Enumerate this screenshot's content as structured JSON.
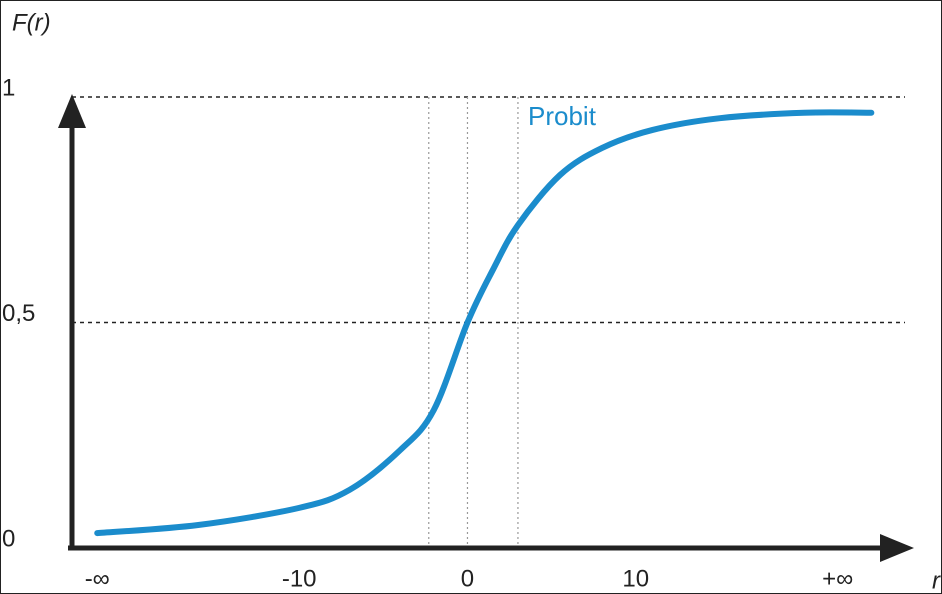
{
  "chart_data": {
    "type": "line",
    "y_label": "F(r)",
    "x_label": "r",
    "x": [
      -22,
      -16,
      -10,
      -7,
      -4,
      -2,
      0,
      1.5,
      3,
      5.5,
      8,
      11,
      15,
      20,
      24
    ],
    "series": [
      {
        "name": "Probit",
        "color": "#1b8ccc",
        "values": [
          0.033,
          0.051,
          0.089,
          0.129,
          0.217,
          0.306,
          0.5,
          0.616,
          0.716,
          0.827,
          0.887,
          0.927,
          0.953,
          0.965,
          0.965
        ]
      }
    ],
    "xlim": [
      -23.5,
      26
    ],
    "ylim": [
      0,
      1
    ],
    "xticks": [
      {
        "value": -22,
        "label": "-∞"
      },
      -10,
      0,
      10,
      {
        "value": 22,
        "label": "+∞"
      }
    ],
    "yticks": [
      0,
      {
        "value": 0.5,
        "label": "0,5"
      },
      1
    ],
    "vlines": [
      -2.3,
      0,
      3
    ],
    "grid": true
  }
}
